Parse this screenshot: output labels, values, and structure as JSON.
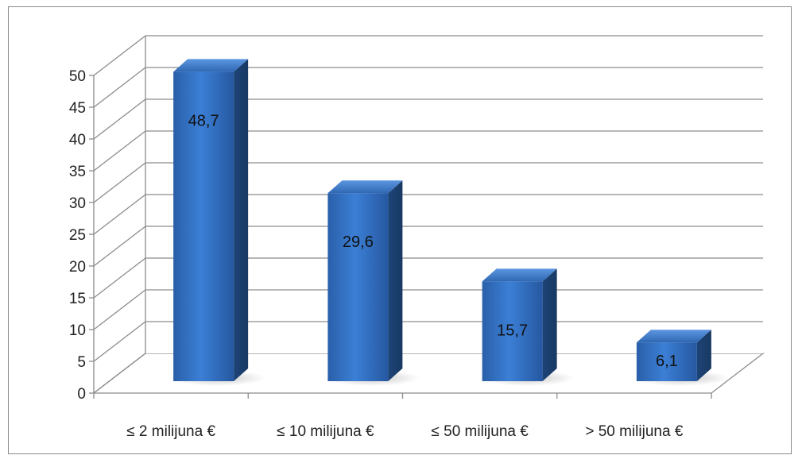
{
  "chart_data": {
    "type": "bar",
    "categories": [
      "≤ 2 milijuna €",
      "≤ 10 milijuna €",
      "≤ 50 milijuna €",
      "> 50 milijuna €"
    ],
    "values": [
      48.7,
      29.6,
      15.7,
      6.1
    ],
    "data_labels": [
      "48,7",
      "29,6",
      "15,7",
      "6,1"
    ],
    "y_ticks": [
      "0",
      "5",
      "10",
      "15",
      "20",
      "25",
      "30",
      "35",
      "40",
      "45",
      "50"
    ],
    "ylim": [
      0,
      50
    ],
    "grid": true,
    "legend": "none",
    "style": "3d-column",
    "bar_color": "#2f6dc0"
  }
}
